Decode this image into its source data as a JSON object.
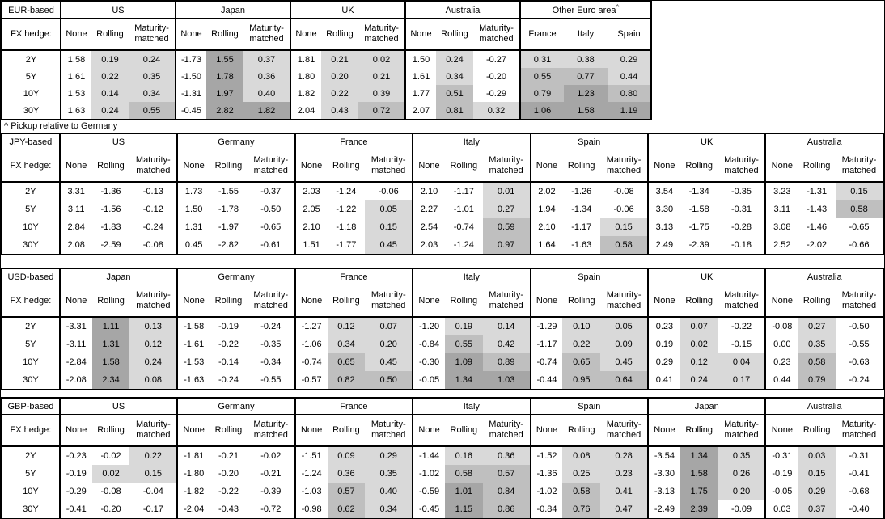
{
  "footnote": "^ Pickup relative to Germany",
  "fx_hedge_label": "FX hedge:",
  "tenors": [
    "2Y",
    "5Y",
    "10Y",
    "30Y"
  ],
  "hedge_types": [
    "None",
    "Rolling",
    "Maturity-matched"
  ],
  "shading": {
    "description": "positive pickup values shaded by magnitude; None columns unshaded",
    "bins": [
      {
        "min": 1.0,
        "color": "#a6a6a6"
      },
      {
        "min": 0.5,
        "color": "#bfbfbf"
      },
      {
        "min": 0.0,
        "color": "#d9d9d9"
      }
    ]
  },
  "chart_data": [
    {
      "type": "table",
      "base": "EUR-based",
      "layout": "compact",
      "groups": [
        {
          "name": "US",
          "kind": "hedge",
          "shade_columns": [
            1,
            2
          ],
          "rows": [
            [
              "1.58",
              "0.19",
              "0.24"
            ],
            [
              "1.61",
              "0.22",
              "0.35"
            ],
            [
              "1.53",
              "0.14",
              "0.34"
            ],
            [
              "1.63",
              "0.24",
              "0.55"
            ]
          ]
        },
        {
          "name": "Japan",
          "kind": "hedge",
          "shade_columns": [
            1,
            2
          ],
          "rows": [
            [
              "-1.73",
              "1.55",
              "0.37"
            ],
            [
              "-1.50",
              "1.78",
              "0.36"
            ],
            [
              "-1.31",
              "1.97",
              "0.40"
            ],
            [
              "-0.45",
              "2.82",
              "1.82"
            ]
          ]
        },
        {
          "name": "UK",
          "kind": "hedge",
          "shade_columns": [
            1,
            2
          ],
          "rows": [
            [
              "1.81",
              "0.21",
              "0.02"
            ],
            [
              "1.80",
              "0.20",
              "0.21"
            ],
            [
              "1.82",
              "0.22",
              "0.39"
            ],
            [
              "2.04",
              "0.43",
              "0.72"
            ]
          ]
        },
        {
          "name": "Australia",
          "kind": "hedge",
          "shade_columns": [
            1,
            2
          ],
          "rows": [
            [
              "1.50",
              "0.24",
              "-0.27"
            ],
            [
              "1.61",
              "0.34",
              "-0.20"
            ],
            [
              "1.77",
              "0.51",
              "-0.29"
            ],
            [
              "2.07",
              "0.81",
              "0.32"
            ]
          ]
        },
        {
          "name": "Other Euro area",
          "sup": "^",
          "kind": "countries",
          "columns": [
            "France",
            "Italy",
            "Spain"
          ],
          "shade_columns": [
            0,
            1,
            2
          ],
          "rows": [
            [
              "0.31",
              "0.38",
              "0.29"
            ],
            [
              "0.55",
              "0.77",
              "0.44"
            ],
            [
              "0.79",
              "1.23",
              "0.80"
            ],
            [
              "1.06",
              "1.58",
              "1.19"
            ]
          ]
        }
      ]
    },
    {
      "type": "table",
      "base": "JPY-based",
      "layout": "full",
      "groups": [
        {
          "name": "US",
          "kind": "hedge",
          "shade_columns": [
            1,
            2
          ],
          "rows": [
            [
              "3.31",
              "-1.36",
              "-0.13"
            ],
            [
              "3.11",
              "-1.56",
              "-0.12"
            ],
            [
              "2.84",
              "-1.83",
              "-0.24"
            ],
            [
              "2.08",
              "-2.59",
              "-0.08"
            ]
          ]
        },
        {
          "name": "Germany",
          "kind": "hedge",
          "shade_columns": [
            1,
            2
          ],
          "rows": [
            [
              "1.73",
              "-1.55",
              "-0.37"
            ],
            [
              "1.50",
              "-1.78",
              "-0.50"
            ],
            [
              "1.31",
              "-1.97",
              "-0.65"
            ],
            [
              "0.45",
              "-2.82",
              "-0.61"
            ]
          ]
        },
        {
          "name": "France",
          "kind": "hedge",
          "shade_columns": [
            1,
            2
          ],
          "rows": [
            [
              "2.03",
              "-1.24",
              "-0.06"
            ],
            [
              "2.05",
              "-1.22",
              "0.05"
            ],
            [
              "2.10",
              "-1.18",
              "0.15"
            ],
            [
              "1.51",
              "-1.77",
              "0.45"
            ]
          ]
        },
        {
          "name": "Italy",
          "kind": "hedge",
          "shade_columns": [
            1,
            2
          ],
          "rows": [
            [
              "2.10",
              "-1.17",
              "0.01"
            ],
            [
              "2.27",
              "-1.01",
              "0.27"
            ],
            [
              "2.54",
              "-0.74",
              "0.59"
            ],
            [
              "2.03",
              "-1.24",
              "0.97"
            ]
          ]
        },
        {
          "name": "Spain",
          "kind": "hedge",
          "shade_columns": [
            1,
            2
          ],
          "rows": [
            [
              "2.02",
              "-1.26",
              "-0.08"
            ],
            [
              "1.94",
              "-1.34",
              "-0.06"
            ],
            [
              "2.10",
              "-1.17",
              "0.15"
            ],
            [
              "1.64",
              "-1.63",
              "0.58"
            ]
          ]
        },
        {
          "name": "UK",
          "kind": "hedge",
          "shade_columns": [
            1,
            2
          ],
          "rows": [
            [
              "3.54",
              "-1.34",
              "-0.35"
            ],
            [
              "3.30",
              "-1.58",
              "-0.31"
            ],
            [
              "3.13",
              "-1.75",
              "-0.28"
            ],
            [
              "2.49",
              "-2.39",
              "-0.18"
            ]
          ]
        },
        {
          "name": "Australia",
          "kind": "hedge",
          "shade_columns": [
            1,
            2
          ],
          "rows": [
            [
              "3.23",
              "-1.31",
              "0.15"
            ],
            [
              "3.11",
              "-1.43",
              "0.58"
            ],
            [
              "3.08",
              "-1.46",
              "-0.65"
            ],
            [
              "2.52",
              "-2.02",
              "-0.66"
            ]
          ]
        }
      ]
    },
    {
      "type": "table",
      "base": "USD-based",
      "layout": "full",
      "groups": [
        {
          "name": "Japan",
          "kind": "hedge",
          "shade_columns": [
            1,
            2
          ],
          "rows": [
            [
              "-3.31",
              "1.11",
              "0.13"
            ],
            [
              "-3.11",
              "1.31",
              "0.12"
            ],
            [
              "-2.84",
              "1.58",
              "0.24"
            ],
            [
              "-2.08",
              "2.34",
              "0.08"
            ]
          ]
        },
        {
          "name": "Germany",
          "kind": "hedge",
          "shade_columns": [
            1,
            2
          ],
          "rows": [
            [
              "-1.58",
              "-0.19",
              "-0.24"
            ],
            [
              "-1.61",
              "-0.22",
              "-0.35"
            ],
            [
              "-1.53",
              "-0.14",
              "-0.34"
            ],
            [
              "-1.63",
              "-0.24",
              "-0.55"
            ]
          ]
        },
        {
          "name": "France",
          "kind": "hedge",
          "shade_columns": [
            1,
            2
          ],
          "rows": [
            [
              "-1.27",
              "0.12",
              "0.07"
            ],
            [
              "-1.06",
              "0.34",
              "0.20"
            ],
            [
              "-0.74",
              "0.65",
              "0.45"
            ],
            [
              "-0.57",
              "0.82",
              "0.50"
            ]
          ]
        },
        {
          "name": "Italy",
          "kind": "hedge",
          "shade_columns": [
            1,
            2
          ],
          "rows": [
            [
              "-1.20",
              "0.19",
              "0.14"
            ],
            [
              "-0.84",
              "0.55",
              "0.42"
            ],
            [
              "-0.30",
              "1.09",
              "0.89"
            ],
            [
              "-0.05",
              "1.34",
              "1.03"
            ]
          ]
        },
        {
          "name": "Spain",
          "kind": "hedge",
          "shade_columns": [
            1,
            2
          ],
          "rows": [
            [
              "-1.29",
              "0.10",
              "0.05"
            ],
            [
              "-1.17",
              "0.22",
              "0.09"
            ],
            [
              "-0.74",
              "0.65",
              "0.45"
            ],
            [
              "-0.44",
              "0.95",
              "0.64"
            ]
          ]
        },
        {
          "name": "UK",
          "kind": "hedge",
          "shade_columns": [
            1,
            2
          ],
          "rows": [
            [
              "0.23",
              "0.07",
              "-0.22"
            ],
            [
              "0.19",
              "0.02",
              "-0.15"
            ],
            [
              "0.29",
              "0.12",
              "0.04"
            ],
            [
              "0.41",
              "0.24",
              "0.17"
            ]
          ]
        },
        {
          "name": "Australia",
          "kind": "hedge",
          "shade_columns": [
            1,
            2
          ],
          "rows": [
            [
              "-0.08",
              "0.27",
              "-0.50"
            ],
            [
              "0.00",
              "0.35",
              "-0.55"
            ],
            [
              "0.23",
              "0.58",
              "-0.63"
            ],
            [
              "0.44",
              "0.79",
              "-0.24"
            ]
          ]
        }
      ]
    },
    {
      "type": "table",
      "base": "GBP-based",
      "layout": "full",
      "groups": [
        {
          "name": "US",
          "kind": "hedge",
          "shade_columns": [
            1,
            2
          ],
          "rows": [
            [
              "-0.23",
              "-0.02",
              "0.22"
            ],
            [
              "-0.19",
              "0.02",
              "0.15"
            ],
            [
              "-0.29",
              "-0.08",
              "-0.04"
            ],
            [
              "-0.41",
              "-0.20",
              "-0.17"
            ]
          ]
        },
        {
          "name": "Germany",
          "kind": "hedge",
          "shade_columns": [
            1,
            2
          ],
          "rows": [
            [
              "-1.81",
              "-0.21",
              "-0.02"
            ],
            [
              "-1.80",
              "-0.20",
              "-0.21"
            ],
            [
              "-1.82",
              "-0.22",
              "-0.39"
            ],
            [
              "-2.04",
              "-0.43",
              "-0.72"
            ]
          ]
        },
        {
          "name": "France",
          "kind": "hedge",
          "shade_columns": [
            1,
            2
          ],
          "rows": [
            [
              "-1.51",
              "0.09",
              "0.29"
            ],
            [
              "-1.24",
              "0.36",
              "0.35"
            ],
            [
              "-1.03",
              "0.57",
              "0.40"
            ],
            [
              "-0.98",
              "0.62",
              "0.34"
            ]
          ]
        },
        {
          "name": "Italy",
          "kind": "hedge",
          "shade_columns": [
            1,
            2
          ],
          "rows": [
            [
              "-1.44",
              "0.16",
              "0.36"
            ],
            [
              "-1.02",
              "0.58",
              "0.57"
            ],
            [
              "-0.59",
              "1.01",
              "0.84"
            ],
            [
              "-0.45",
              "1.15",
              "0.86"
            ]
          ]
        },
        {
          "name": "Spain",
          "kind": "hedge",
          "shade_columns": [
            1,
            2
          ],
          "rows": [
            [
              "-1.52",
              "0.08",
              "0.28"
            ],
            [
              "-1.36",
              "0.25",
              "0.23"
            ],
            [
              "-1.02",
              "0.58",
              "0.41"
            ],
            [
              "-0.84",
              "0.76",
              "0.47"
            ]
          ]
        },
        {
          "name": "Japan",
          "kind": "hedge",
          "shade_columns": [
            1,
            2
          ],
          "rows": [
            [
              "-3.54",
              "1.34",
              "0.35"
            ],
            [
              "-3.30",
              "1.58",
              "0.26"
            ],
            [
              "-3.13",
              "1.75",
              "0.20"
            ],
            [
              "-2.49",
              "2.39",
              "-0.09"
            ]
          ]
        },
        {
          "name": "Australia",
          "kind": "hedge",
          "shade_columns": [
            1,
            2
          ],
          "rows": [
            [
              "-0.31",
              "0.03",
              "-0.31"
            ],
            [
              "-0.19",
              "0.15",
              "-0.41"
            ],
            [
              "-0.05",
              "0.29",
              "-0.68"
            ],
            [
              "0.03",
              "0.37",
              "-0.40"
            ]
          ]
        }
      ]
    }
  ]
}
